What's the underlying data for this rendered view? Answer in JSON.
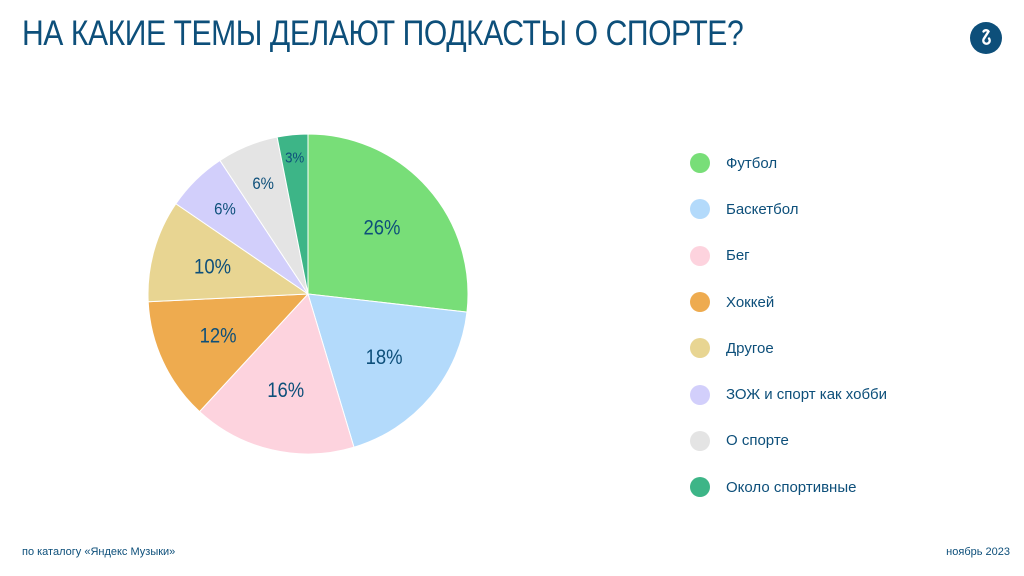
{
  "title": "На какие темы делают подкасты о спорте?",
  "footer": {
    "source": "по каталогу «Яндекс Музыки»",
    "date": "ноябрь 2023"
  },
  "colors": {
    "text": "#0d4f7a",
    "logo_bg": "#0d4f7a",
    "label_text": "#0d4f7a"
  },
  "chart_data": {
    "type": "pie",
    "start": "12 o'clock",
    "direction": "clockwise",
    "legend_position": "right",
    "slices": [
      {
        "name": "Футбол",
        "value": 26,
        "label": "26%",
        "color": "#78de78"
      },
      {
        "name": "Баскетбол",
        "value": 18,
        "label": "18%",
        "color": "#b3dafb"
      },
      {
        "name": "Бег",
        "value": 16,
        "label": "16%",
        "color": "#fdd3de"
      },
      {
        "name": "Хоккей",
        "value": 12,
        "label": "12%",
        "color": "#eeab4f"
      },
      {
        "name": "Другое",
        "value": 10,
        "label": "10%",
        "color": "#e8d592"
      },
      {
        "name": "ЗОЖ и спорт как хобби",
        "value": 6,
        "label": "6%",
        "color": "#d2cffb"
      },
      {
        "name": "О спорте",
        "value": 6,
        "label": "6%",
        "color": "#e4e4e4"
      },
      {
        "name": "Около спортивные",
        "value": 3,
        "label": "3%",
        "color": "#3db587"
      }
    ]
  }
}
